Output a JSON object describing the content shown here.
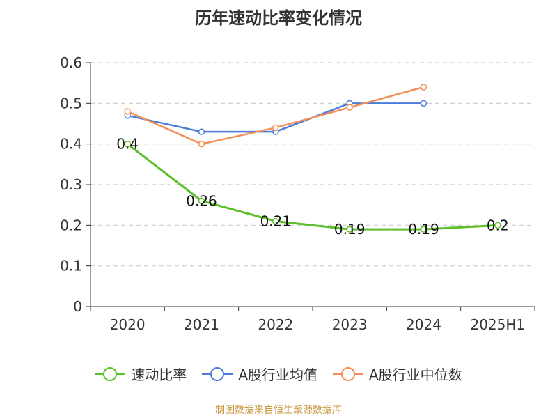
{
  "chart_data": {
    "type": "line",
    "title": "历年速动比率变化情况",
    "categories": [
      "2020",
      "2021",
      "2022",
      "2023",
      "2024",
      "2025H1"
    ],
    "ylim": [
      0,
      0.6
    ],
    "yticks": [
      0,
      0.1,
      0.2,
      0.3,
      0.4,
      0.5,
      0.6
    ],
    "ytick_labels": [
      "0",
      "0.1",
      "0.2",
      "0.3",
      "0.4",
      "0.5",
      "0.6"
    ],
    "grid": true,
    "legend_position": "bottom",
    "series": [
      {
        "name": "速动比率",
        "color": "#5cc02a",
        "values": [
          0.4,
          0.26,
          0.21,
          0.19,
          0.19,
          0.2
        ],
        "labels": [
          "0.4",
          "0.26",
          "0.21",
          "0.19",
          "0.19",
          "0.2"
        ]
      },
      {
        "name": "A股行业均值",
        "color": "#4a7ddb",
        "values": [
          0.47,
          0.43,
          0.43,
          0.5,
          0.5,
          null
        ]
      },
      {
        "name": "A股行业中位数",
        "color": "#f28e56",
        "values": [
          0.48,
          0.4,
          0.44,
          0.49,
          0.54,
          null
        ]
      }
    ]
  },
  "source": "制图数据来自恒生聚源数据库"
}
